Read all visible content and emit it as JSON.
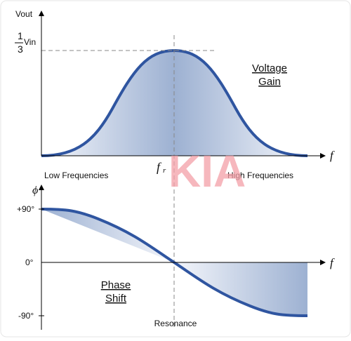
{
  "top": {
    "y_label": "Vout",
    "ref_numerator": "1",
    "ref_denominator": "3",
    "ref_unit": "Vin",
    "curve_label": [
      "Voltage",
      "Gain"
    ],
    "x_label": "f",
    "left_note": "Low Frequencies",
    "right_note": "High Frequencies",
    "center_label": {
      "main": "f",
      "sub": "r"
    }
  },
  "watermark": "KIA",
  "bottom": {
    "y_label": "ϕ",
    "ticks": [
      "+90°",
      "0°",
      "-90°"
    ],
    "x_label": "f",
    "curve_label": [
      "Phase",
      "Shift"
    ],
    "center_label": "Resonance"
  }
}
